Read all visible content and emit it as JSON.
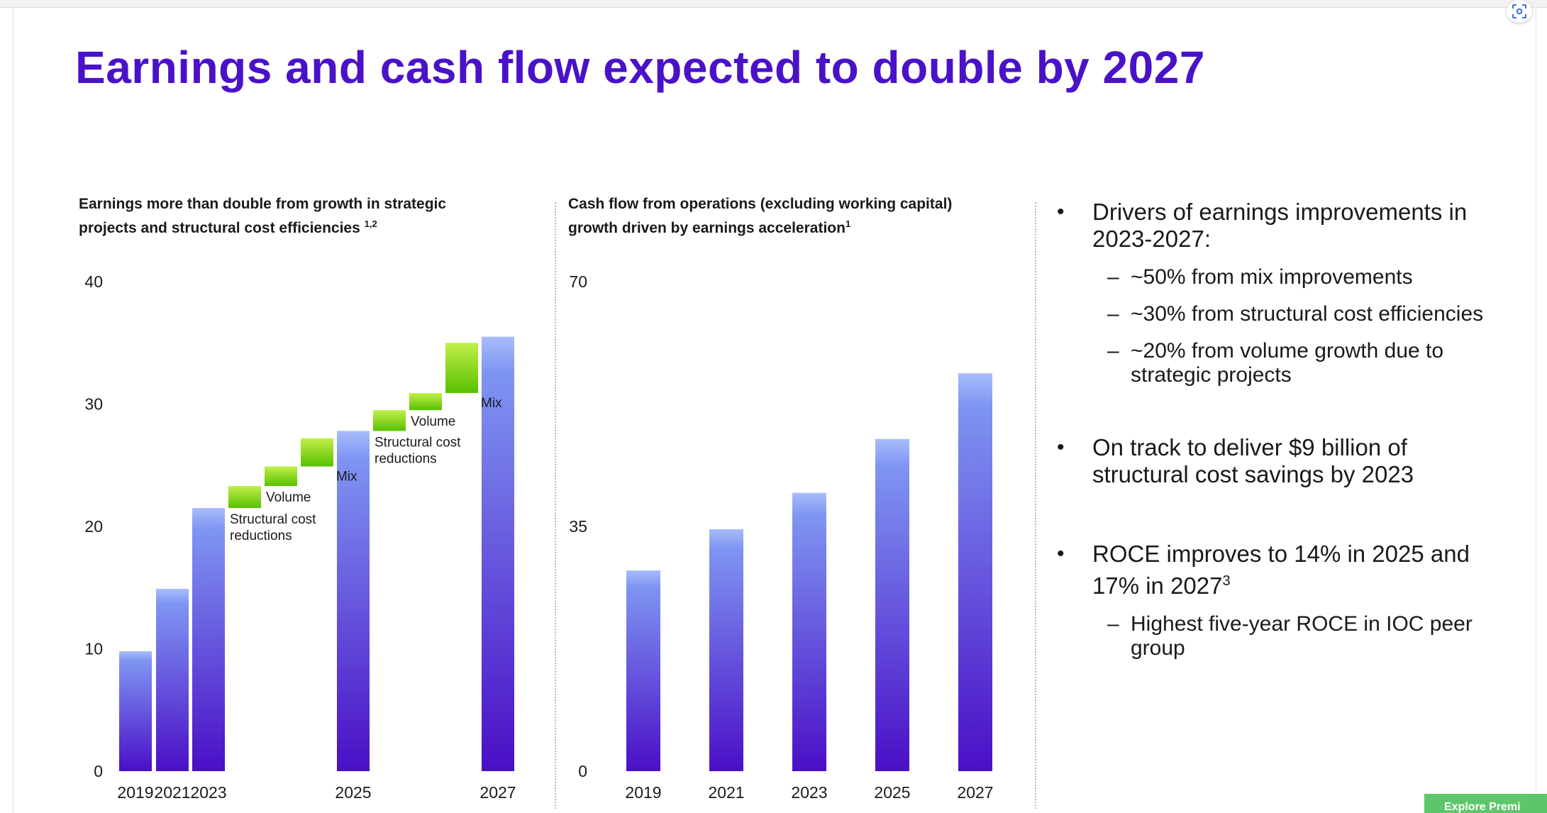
{
  "title": "Earnings and cash flow expected to double by 2027",
  "colors": {
    "title": "#4a12c8",
    "bar_top": "#7f95f2",
    "bar_bottom": "#4a0fc6",
    "step_top": "#b6ec3c",
    "step_bottom": "#5cc400"
  },
  "chart_data": [
    {
      "type": "bar",
      "subtitle_line1": "Earnings more than double from growth in strategic",
      "subtitle_line2": "projects and structural cost efficiencies",
      "subtitle_sup": "1,2",
      "x_tick_labels": [
        "2019",
        "2021",
        "2023",
        "2025",
        "2027"
      ],
      "y_ticks": [
        "0",
        "10",
        "20",
        "30",
        "40"
      ],
      "ylim": [
        0,
        40
      ],
      "bars": [
        {
          "category": "2019",
          "value": 9.8
        },
        {
          "category": "2021",
          "value": 14.9
        },
        {
          "category": "2023",
          "value": 21.5
        },
        {
          "category": "2025",
          "value": 27.8
        },
        {
          "category": "2027",
          "value": 35.5
        }
      ],
      "steps": [
        {
          "label": "Structural cost reductions",
          "from": 21.5,
          "to": 23.3
        },
        {
          "label": "Volume",
          "from": 23.3,
          "to": 24.9
        },
        {
          "label": "Mix",
          "from": 24.9,
          "to": 27.2
        },
        {
          "label": "Structural cost reductions",
          "from": 27.8,
          "to": 29.5
        },
        {
          "label": "Volume",
          "from": 29.5,
          "to": 30.9
        },
        {
          "label": "Mix",
          "from": 30.9,
          "to": 35.0
        }
      ]
    },
    {
      "type": "bar",
      "subtitle_line1": "Cash flow from operations (excluding working capital)",
      "subtitle_line2": "growth driven by earnings acceleration",
      "subtitle_sup": "1",
      "categories": [
        "2019",
        "2021",
        "2023",
        "2025",
        "2027"
      ],
      "values": [
        28.7,
        34.6,
        39.8,
        47.5,
        56.9
      ],
      "y_ticks": [
        "0",
        "35",
        "70"
      ],
      "ylim": [
        0,
        70
      ]
    }
  ],
  "bullets": [
    {
      "text": "Drivers of earnings improvements in 2023-2027:",
      "subs": [
        "~50% from mix improvements",
        "~30% from structural cost efficiencies",
        "~20% from volume growth due to strategic projects"
      ]
    },
    {
      "text": "On track to deliver $9 billion of structural cost savings by 2023",
      "subs": []
    },
    {
      "text": "ROCE improves to 14% in 2025 and 17% in 2027",
      "sup": "3",
      "subs": [
        "Highest five-year ROCE in IOC peer group"
      ]
    }
  ],
  "corner_button_icon": "scan-icon",
  "explore_label": "Explore Premi"
}
